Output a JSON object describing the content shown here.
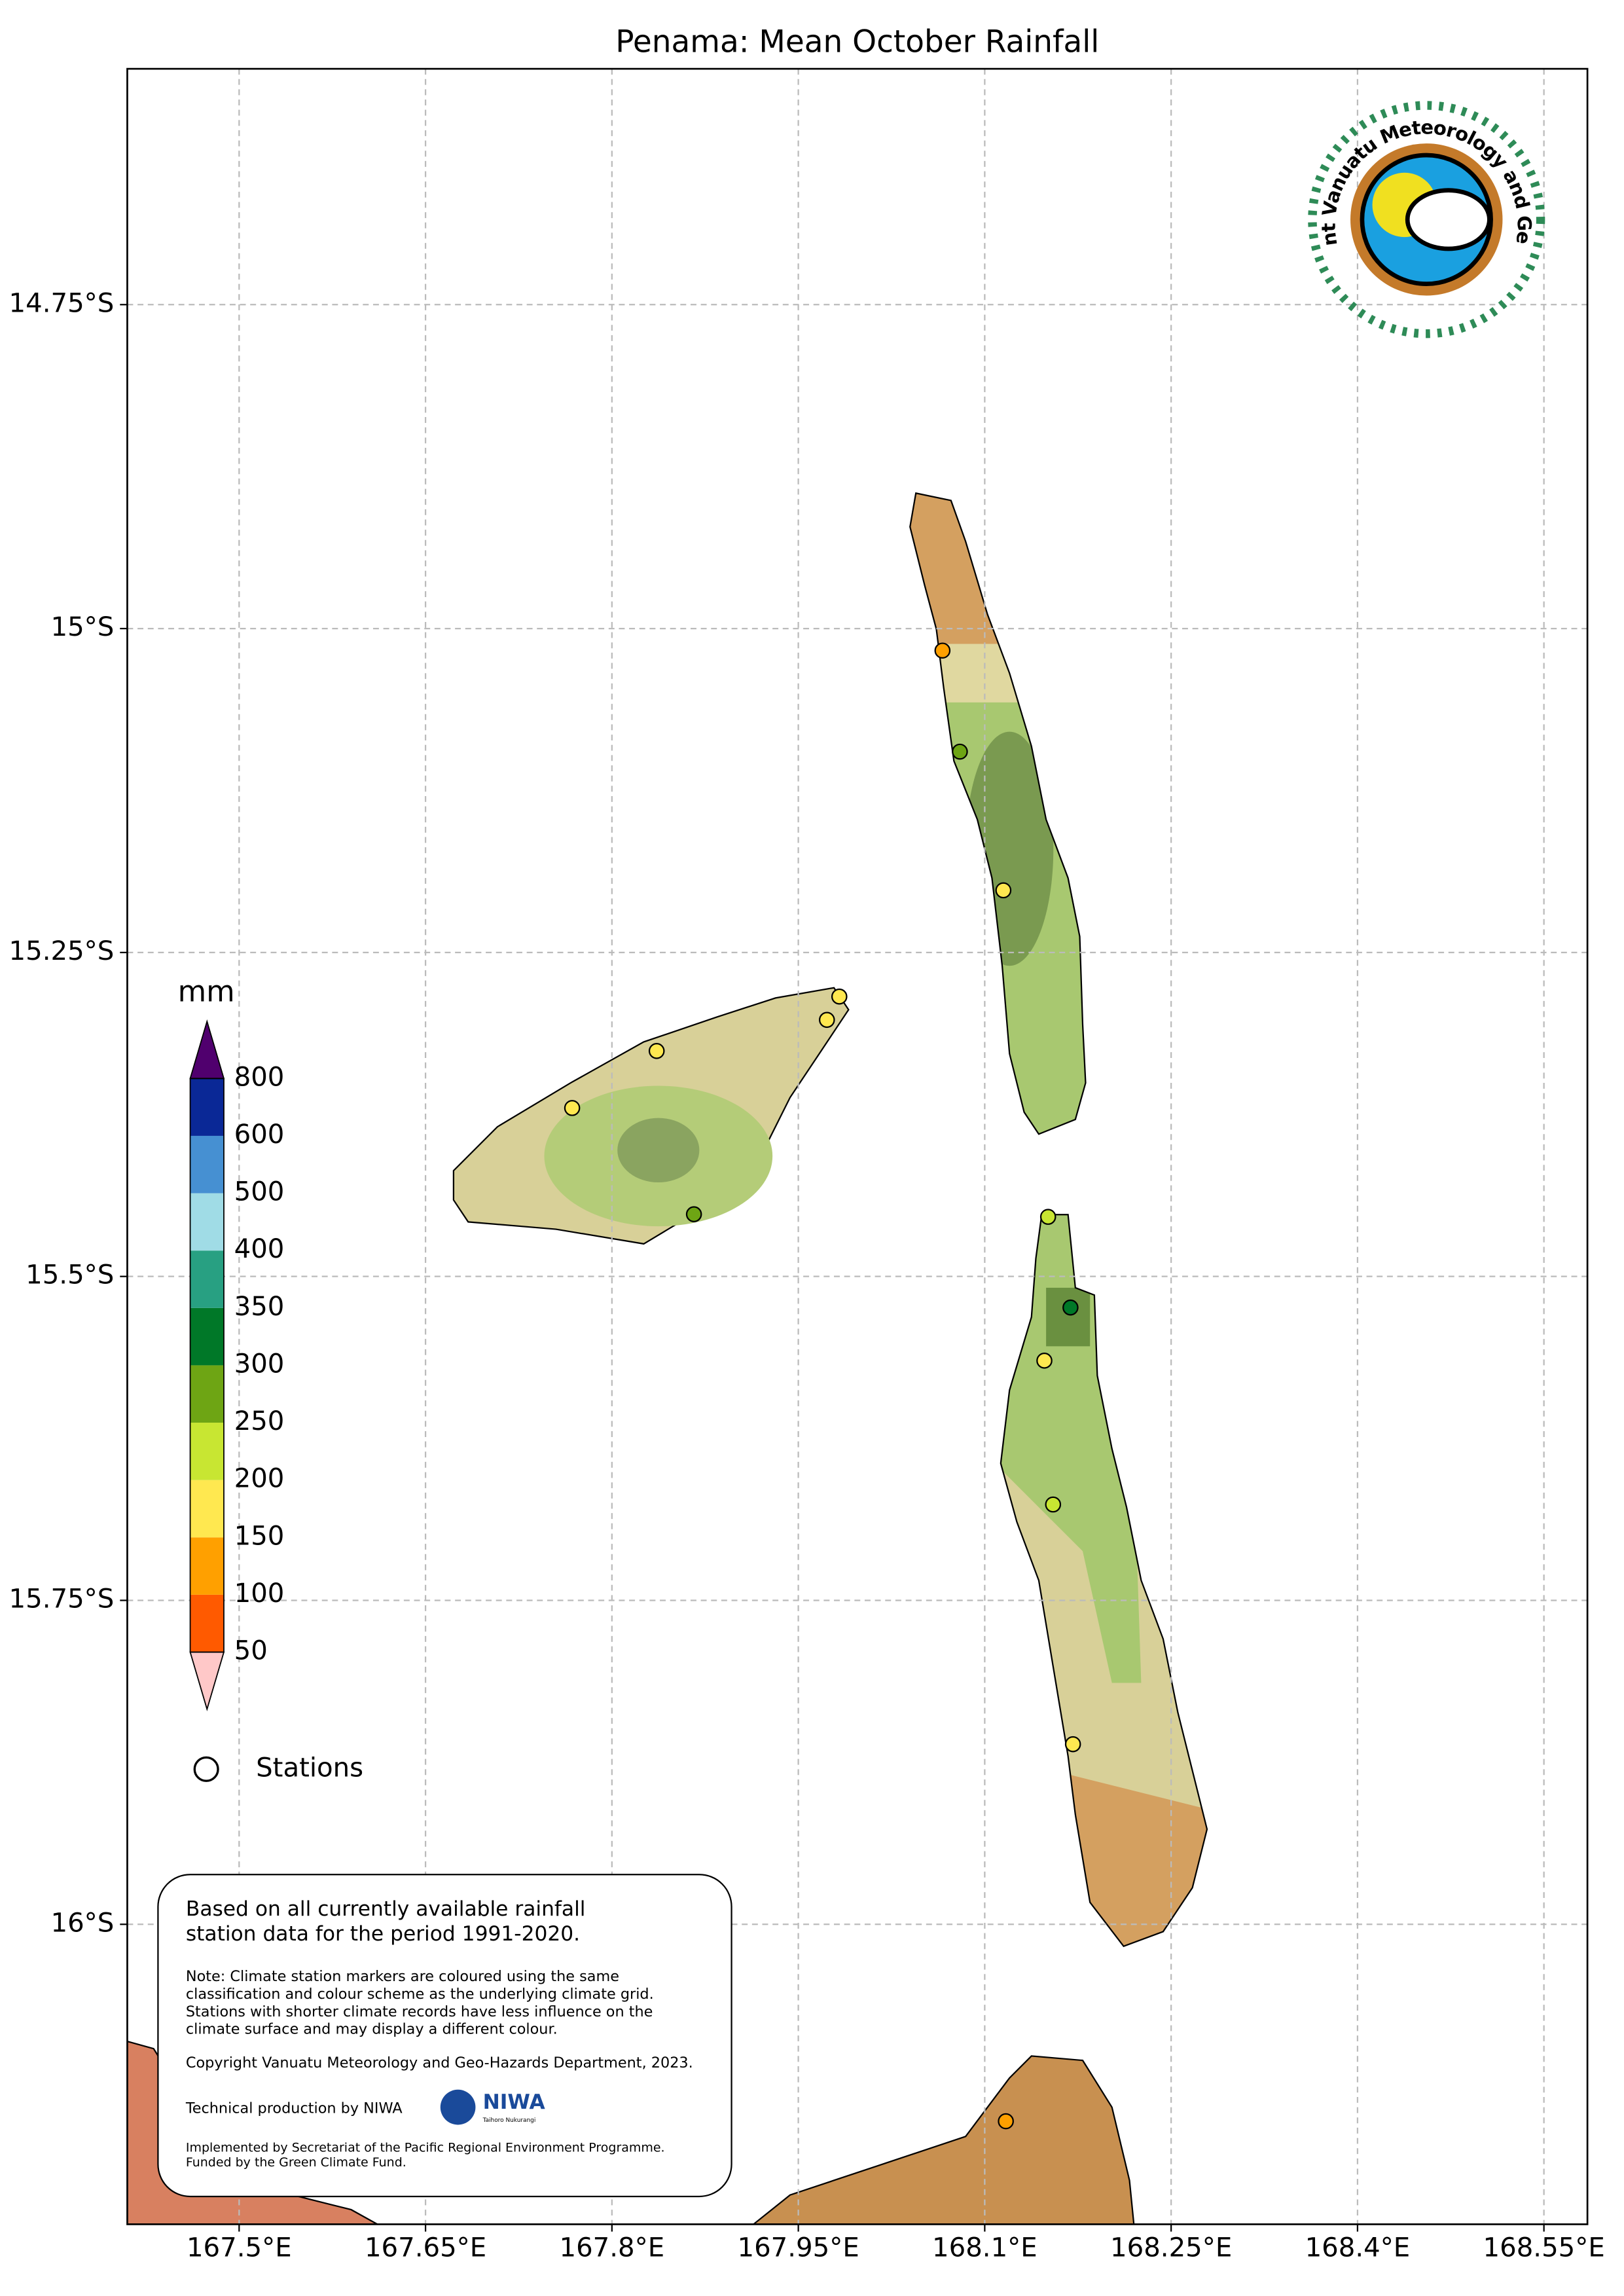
{
  "title": "Penama: Mean October Rainfall",
  "map": {
    "xlim": [
      167.41,
      168.585
    ],
    "ylim": [
      -16.2315,
      -14.568
    ],
    "xticks": [
      {
        "value": 167.5,
        "label": "167.5°E"
      },
      {
        "value": 167.65,
        "label": "167.65°E"
      },
      {
        "value": 167.8,
        "label": "167.8°E"
      },
      {
        "value": 167.95,
        "label": "167.95°E"
      },
      {
        "value": 168.1,
        "label": "168.1°E"
      },
      {
        "value": 168.25,
        "label": "168.25°E"
      },
      {
        "value": 168.4,
        "label": "168.4°E"
      },
      {
        "value": 168.55,
        "label": "168.55°E"
      }
    ],
    "yticks": [
      {
        "value": -14.75,
        "label": "14.75°S"
      },
      {
        "value": -15,
        "label": "15°S"
      },
      {
        "value": -15.25,
        "label": "15.25°S"
      },
      {
        "value": -15.5,
        "label": "15.5°S"
      },
      {
        "value": -15.75,
        "label": "15.75°S"
      },
      {
        "value": -16,
        "label": "16°S"
      }
    ],
    "grid": true,
    "colorbar": {
      "label": "mm",
      "levels": [
        50,
        100,
        150,
        200,
        250,
        300,
        350,
        400,
        500,
        600,
        800
      ],
      "colors": [
        "#ff5a00",
        "#ffa000",
        "#ffe850",
        "#c8e632",
        "#6ea514",
        "#007828",
        "#28a082",
        "#a0dce6",
        "#4690d2",
        "#0a2896"
      ],
      "under_color": "#ffc8c8",
      "over_color": "#50006e"
    },
    "stations": {
      "label": "Stations",
      "points": [
        {
          "lon": 168.066,
          "lat": -15.017,
          "color": "#ffa000"
        },
        {
          "lon": 168.08,
          "lat": -15.095,
          "color": "#6ea514"
        },
        {
          "lon": 168.115,
          "lat": -15.202,
          "color": "#ffe850"
        },
        {
          "lon": 167.983,
          "lat": -15.284,
          "color": "#ffe850"
        },
        {
          "lon": 167.973,
          "lat": -15.302,
          "color": "#ffe850"
        },
        {
          "lon": 167.836,
          "lat": -15.326,
          "color": "#ffe850"
        },
        {
          "lon": 167.768,
          "lat": -15.37,
          "color": "#ffe850"
        },
        {
          "lon": 167.866,
          "lat": -15.452,
          "color": "#6ea514"
        },
        {
          "lon": 168.151,
          "lat": -15.454,
          "color": "#c8e632"
        },
        {
          "lon": 168.169,
          "lat": -15.524,
          "color": "#007828"
        },
        {
          "lon": 168.148,
          "lat": -15.565,
          "color": "#ffe850"
        },
        {
          "lon": 168.155,
          "lat": -15.676,
          "color": "#c8e632"
        },
        {
          "lon": 168.171,
          "lat": -15.861,
          "color": "#ffe850"
        },
        {
          "lon": 168.117,
          "lat": -16.152,
          "color": "#ffa000"
        }
      ]
    }
  },
  "logo": {
    "text": "Department Vanuatu Meteorology and Geo-Hazards"
  },
  "note": {
    "summary": [
      "Based on all currently available rainfall",
      "station data for the period 1991-2020."
    ],
    "details": [
      "Note: Climate station markers are coloured using the same",
      "classification and colour scheme as the underlying climate grid.",
      "Stations with shorter climate records have less influence on the",
      "climate surface and may display a different colour."
    ],
    "copyright": "Copyright Vanuatu Meteorology and Geo-Hazards Department, 2023.",
    "production": "Technical production by NIWA",
    "niwa": "NIWA",
    "niwa_sub": "Taihoro Nukurangi",
    "funding": [
      "Implemented by Secretariat of the Pacific Regional Environment Programme.",
      "Funded by the Green Climate Fund."
    ]
  }
}
